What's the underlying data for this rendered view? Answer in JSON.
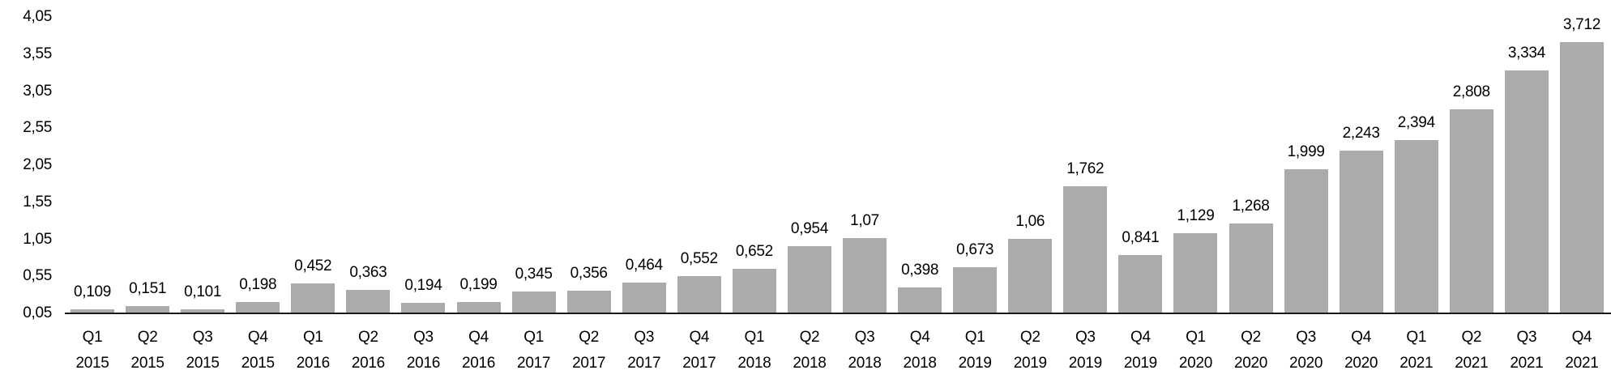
{
  "chart_data": {
    "type": "bar",
    "title": "",
    "xlabel": "",
    "ylabel": "",
    "categories": [
      {
        "quarter": "Q1",
        "year": "2015"
      },
      {
        "quarter": "Q2",
        "year": "2015"
      },
      {
        "quarter": "Q3",
        "year": "2015"
      },
      {
        "quarter": "Q4",
        "year": "2015"
      },
      {
        "quarter": "Q1",
        "year": "2016"
      },
      {
        "quarter": "Q2",
        "year": "2016"
      },
      {
        "quarter": "Q3",
        "year": "2016"
      },
      {
        "quarter": "Q4",
        "year": "2016"
      },
      {
        "quarter": "Q1",
        "year": "2017"
      },
      {
        "quarter": "Q2",
        "year": "2017"
      },
      {
        "quarter": "Q3",
        "year": "2017"
      },
      {
        "quarter": "Q4",
        "year": "2017"
      },
      {
        "quarter": "Q1",
        "year": "2018"
      },
      {
        "quarter": "Q2",
        "year": "2018"
      },
      {
        "quarter": "Q3",
        "year": "2018"
      },
      {
        "quarter": "Q4",
        "year": "2018"
      },
      {
        "quarter": "Q1",
        "year": "2019"
      },
      {
        "quarter": "Q2",
        "year": "2019"
      },
      {
        "quarter": "Q3",
        "year": "2019"
      },
      {
        "quarter": "Q4",
        "year": "2019"
      },
      {
        "quarter": "Q1",
        "year": "2020"
      },
      {
        "quarter": "Q2",
        "year": "2020"
      },
      {
        "quarter": "Q3",
        "year": "2020"
      },
      {
        "quarter": "Q4",
        "year": "2020"
      },
      {
        "quarter": "Q1",
        "year": "2021"
      },
      {
        "quarter": "Q2",
        "year": "2021"
      },
      {
        "quarter": "Q3",
        "year": "2021"
      },
      {
        "quarter": "Q4",
        "year": "2021"
      }
    ],
    "values": [
      0.109,
      0.151,
      0.101,
      0.198,
      0.452,
      0.363,
      0.194,
      0.199,
      0.345,
      0.356,
      0.464,
      0.552,
      0.652,
      0.954,
      1.07,
      0.398,
      0.673,
      1.06,
      1.762,
      0.841,
      1.129,
      1.268,
      1.999,
      2.243,
      2.394,
      2.808,
      3.334,
      3.712
    ],
    "value_labels": [
      "0,109",
      "0,151",
      "0,101",
      "0,198",
      "0,452",
      "0,363",
      "0,194",
      "0,199",
      "0,345",
      "0,356",
      "0,464",
      "0,552",
      "0,652",
      "0,954",
      "1,07",
      "0,398",
      "0,673",
      "1,06",
      "1,762",
      "0,841",
      "1,129",
      "1,268",
      "1,999",
      "2,243",
      "2,394",
      "2,808",
      "3,334",
      "3,712"
    ],
    "y_ticks": [
      "4,05",
      "3,55",
      "3,05",
      "2,55",
      "2,05",
      "1,55",
      "1,05",
      "0,55",
      "0,05"
    ],
    "ylim": [
      0.05,
      4.05
    ],
    "grid": "off",
    "legend": "none",
    "decimal_separator": ",",
    "bar_color": "#ABABAB",
    "axis_line_color": "#1a1a1a",
    "text_color": "#000000"
  }
}
